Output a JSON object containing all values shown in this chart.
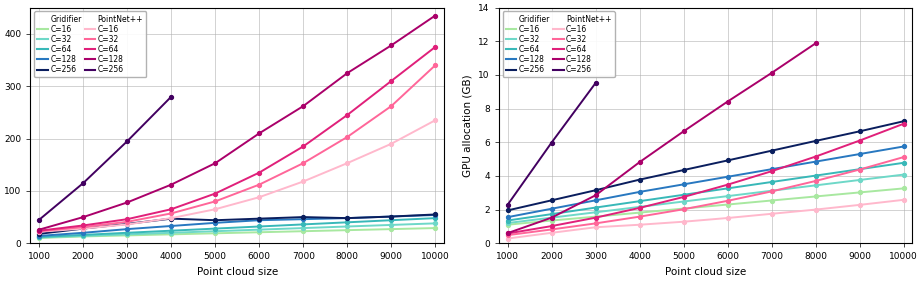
{
  "x": [
    1000,
    2000,
    3000,
    4000,
    5000,
    6000,
    7000,
    8000,
    9000,
    10000
  ],
  "g_colors": [
    "#a8e8a0",
    "#6ed8c8",
    "#38b8b8",
    "#2878c0",
    "#0a1e5e"
  ],
  "p_colors": [
    "#ffb8cc",
    "#ff6699",
    "#e0207a",
    "#aa006a",
    "#420060"
  ],
  "g_labels": [
    "C=16",
    "C=32",
    "C=64",
    "C=128",
    "C=256"
  ],
  "p_labels": [
    "C=16",
    "C=32",
    "C=64",
    "C=128",
    "C=256"
  ],
  "time_g": [
    [
      10,
      13,
      15,
      17,
      19,
      21,
      23,
      25,
      27,
      29
    ],
    [
      11,
      14,
      17,
      20,
      23,
      26,
      29,
      32,
      35,
      38
    ],
    [
      12,
      16,
      20,
      24,
      28,
      32,
      36,
      40,
      44,
      48
    ],
    [
      14,
      20,
      27,
      33,
      39,
      44,
      46,
      48,
      51,
      54
    ],
    [
      18,
      28,
      37,
      47,
      44,
      47,
      50,
      48,
      51,
      55
    ]
  ],
  "time_g_x": [
    [
      1000,
      2000,
      3000,
      4000,
      5000,
      6000,
      7000,
      8000,
      9000,
      10000
    ],
    [
      1000,
      2000,
      3000,
      4000,
      5000,
      6000,
      7000,
      8000,
      9000,
      10000
    ],
    [
      1000,
      2000,
      3000,
      4000,
      5000,
      6000,
      7000,
      8000,
      9000,
      10000
    ],
    [
      1000,
      2000,
      3000,
      4000,
      5000,
      6000,
      7000,
      8000,
      9000,
      10000
    ],
    [
      1000,
      2000,
      3000,
      4000,
      5000,
      6000,
      7000,
      8000,
      9000,
      10000
    ]
  ],
  "time_p_x": [
    [
      1000,
      2000,
      3000,
      4000,
      5000,
      6000,
      7000,
      8000,
      9000,
      10000
    ],
    [
      1000,
      2000,
      3000,
      4000,
      5000,
      6000,
      7000,
      8000,
      9000,
      10000
    ],
    [
      1000,
      2000,
      3000,
      4000,
      5000,
      6000,
      7000,
      8000,
      9000,
      10000
    ],
    [
      1000,
      2000,
      3000,
      4000,
      5000,
      6000,
      7000,
      8000,
      9000,
      10000
    ],
    [
      1000,
      2000,
      3000,
      4000
    ]
  ],
  "time_p": [
    [
      22,
      28,
      36,
      48,
      65,
      88,
      118,
      153,
      190,
      235
    ],
    [
      23,
      31,
      41,
      57,
      80,
      112,
      153,
      203,
      262,
      340
    ],
    [
      24,
      34,
      46,
      65,
      95,
      135,
      185,
      245,
      310,
      375
    ],
    [
      26,
      50,
      78,
      112,
      153,
      210,
      262,
      325,
      378,
      435
    ],
    [
      45,
      115,
      195,
      280
    ]
  ],
  "gpu_g_x": [
    [
      1000,
      2000,
      3000,
      4000,
      5000,
      6000,
      7000,
      8000,
      9000,
      10000
    ],
    [
      1000,
      2000,
      3000,
      4000,
      5000,
      6000,
      7000,
      8000,
      9000,
      10000
    ],
    [
      1000,
      2000,
      3000,
      4000,
      5000,
      6000,
      7000,
      8000,
      9000,
      10000
    ],
    [
      1000,
      2000,
      3000,
      4000,
      5000,
      6000,
      7000,
      8000,
      9000,
      10000
    ],
    [
      1000,
      2000,
      3000,
      4000,
      5000,
      6000,
      7000,
      8000,
      9000,
      10000
    ]
  ],
  "gpu_g": [
    [
      1.1,
      1.35,
      1.58,
      1.82,
      2.06,
      2.3,
      2.54,
      2.78,
      3.02,
      3.26
    ],
    [
      1.2,
      1.52,
      1.84,
      2.16,
      2.48,
      2.8,
      3.12,
      3.44,
      3.76,
      4.08
    ],
    [
      1.35,
      1.73,
      2.12,
      2.5,
      2.88,
      3.26,
      3.64,
      4.02,
      4.4,
      4.78
    ],
    [
      1.55,
      2.05,
      2.55,
      3.05,
      3.5,
      3.95,
      4.4,
      4.85,
      5.3,
      5.75
    ],
    [
      1.95,
      2.55,
      3.15,
      3.78,
      4.35,
      4.92,
      5.5,
      6.08,
      6.65,
      7.25
    ]
  ],
  "gpu_p_x": [
    [
      1000,
      2000,
      3000,
      4000,
      5000,
      6000,
      7000,
      8000,
      9000,
      10000
    ],
    [
      1000,
      2000,
      3000,
      4000,
      5000,
      6000,
      7000,
      8000,
      9000,
      10000
    ],
    [
      1000,
      2000,
      3000,
      4000,
      5000,
      6000,
      7000,
      8000,
      9000,
      10000
    ],
    [
      1000,
      2000,
      3000,
      4000,
      5000,
      6000,
      7000,
      8000
    ],
    [
      1000,
      2000,
      3000
    ]
  ],
  "gpu_p": [
    [
      0.28,
      0.62,
      0.95,
      1.1,
      1.28,
      1.5,
      1.75,
      2.0,
      2.28,
      2.58
    ],
    [
      0.48,
      0.82,
      1.18,
      1.58,
      2.02,
      2.52,
      3.08,
      3.7,
      4.38,
      5.12
    ],
    [
      0.58,
      1.02,
      1.52,
      2.1,
      2.75,
      3.48,
      4.28,
      5.15,
      6.1,
      7.1
    ],
    [
      0.6,
      1.52,
      2.85,
      4.82,
      6.65,
      8.42,
      10.12,
      11.88
    ],
    [
      2.28,
      5.98,
      9.52
    ]
  ],
  "ylabel_left": "",
  "ylabel_right": "GPU allocation (GB)",
  "xlabel": "Point cloud size",
  "ylim_left": [
    0,
    450
  ],
  "ylim_right": [
    0,
    14
  ],
  "yticks_left": [
    0,
    100,
    200,
    300,
    400
  ],
  "yticks_right": [
    0,
    2,
    4,
    6,
    8,
    10,
    12,
    14
  ]
}
